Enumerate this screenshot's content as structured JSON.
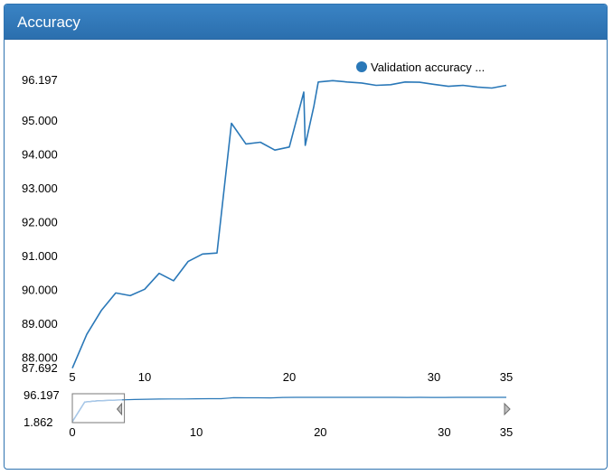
{
  "panel": {
    "title": "Accuracy"
  },
  "colors": {
    "header": "#2f73b0",
    "line": "#2a78b8",
    "navigator_line": "#a9c8e8"
  },
  "chart_data": {
    "type": "line",
    "title": "",
    "xlabel": "",
    "ylabel": "",
    "xlim": [
      5,
      35
    ],
    "ylim": [
      87.692,
      96.197
    ],
    "yticks": [
      "87.692",
      "88.000",
      "89.000",
      "90.000",
      "91.000",
      "92.000",
      "93.000",
      "94.000",
      "95.000",
      "96.197"
    ],
    "xticks": [
      "5",
      "10",
      "20",
      "30",
      "35"
    ],
    "legend": {
      "position": "top-right",
      "entries": [
        "Validation accuracy ..."
      ]
    },
    "series": [
      {
        "name": "Validation accuracy ...",
        "x": [
          5,
          6,
          7,
          8,
          9,
          10,
          11,
          12,
          13,
          14,
          15,
          16,
          17,
          18,
          19,
          20,
          21,
          21.1,
          21.7,
          22,
          23,
          24,
          25,
          26,
          27,
          28,
          29,
          30,
          31,
          32,
          33,
          34,
          35
        ],
        "y": [
          87.7,
          88.7,
          89.4,
          89.92,
          89.84,
          90.03,
          90.5,
          90.28,
          90.85,
          91.07,
          91.1,
          94.93,
          94.32,
          94.37,
          94.14,
          94.23,
          95.85,
          94.28,
          95.44,
          96.15,
          96.19,
          96.15,
          96.12,
          96.05,
          96.07,
          96.15,
          96.14,
          96.08,
          96.02,
          96.05,
          96.0,
          95.97,
          96.05
        ]
      }
    ],
    "navigator": {
      "xlim": [
        0,
        35
      ],
      "ylim": [
        1.862,
        96.197
      ],
      "yticks": [
        "96.197",
        "1.862"
      ],
      "xticks": [
        "0",
        "10",
        "20",
        "30",
        "35"
      ],
      "selection": [
        0,
        4.2
      ],
      "series_x": [
        0,
        1,
        2,
        3,
        4,
        5,
        6,
        7,
        8,
        9,
        10,
        11,
        12,
        13,
        14,
        15,
        16,
        17,
        18,
        19,
        20,
        21,
        22,
        23,
        24,
        25,
        26,
        27,
        28,
        29,
        30,
        31,
        32,
        33,
        34,
        35
      ],
      "series_y": [
        1.862,
        78.0,
        82.5,
        84.5,
        86.5,
        87.7,
        88.7,
        89.4,
        89.92,
        90.03,
        90.5,
        90.85,
        91.1,
        94.93,
        94.32,
        94.37,
        94.14,
        95.85,
        96.15,
        96.19,
        96.15,
        96.12,
        96.05,
        96.07,
        96.15,
        96.14,
        96.08,
        96.02,
        96.05,
        96.0,
        95.97,
        96.05,
        96.05,
        96.05,
        96.05,
        96.05
      ]
    }
  }
}
